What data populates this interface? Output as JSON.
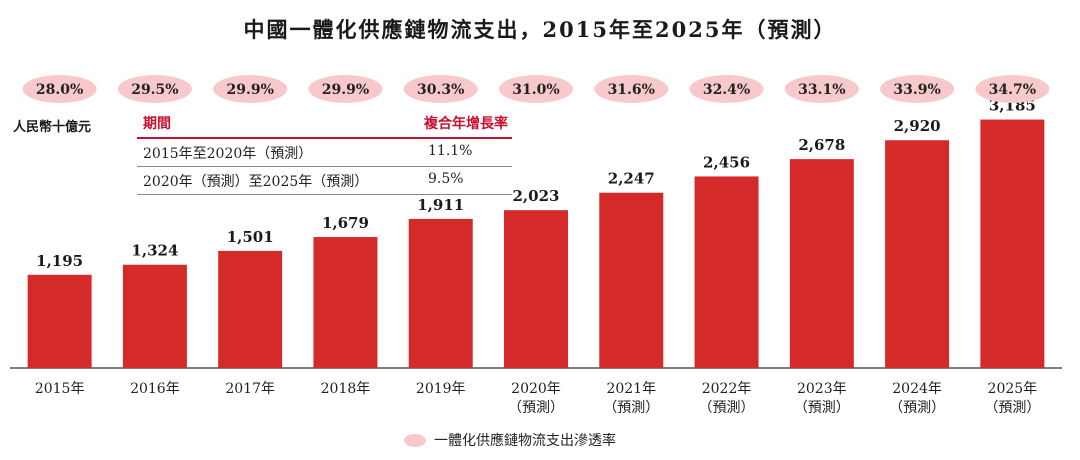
{
  "chart_data": {
    "type": "bar",
    "title": "中國一體化供應鏈物流支出，2015年至2025年（預測）",
    "unit": "人民幣十億元",
    "categories": [
      [
        "2015年"
      ],
      [
        "2016年"
      ],
      [
        "2017年"
      ],
      [
        "2018年"
      ],
      [
        "2019年"
      ],
      [
        "2020年",
        "（預測）"
      ],
      [
        "2021年",
        "（預測）"
      ],
      [
        "2022年",
        "（預測）"
      ],
      [
        "2023年",
        "（預測）"
      ],
      [
        "2024年",
        "（預測）"
      ],
      [
        "2025年",
        "（預測）"
      ]
    ],
    "series": [
      {
        "values": [
          1195,
          1324,
          1501,
          1679,
          1911,
          2023,
          2247,
          2456,
          2678,
          2920,
          3185
        ],
        "labels": [
          "1,195",
          "1,324",
          "1,501",
          "1,679",
          "1,911",
          "2,023",
          "2,247",
          "2,456",
          "2,678",
          "2,920",
          "3,185"
        ]
      },
      {
        "name": "一體化供應鏈物流支出滲透率",
        "values": [
          28.0,
          29.5,
          29.9,
          29.9,
          30.3,
          31.0,
          31.6,
          32.4,
          33.1,
          33.9,
          34.7
        ],
        "labels": [
          "28.0%",
          "29.5%",
          "29.9%",
          "29.9%",
          "30.3%",
          "31.0%",
          "31.6%",
          "32.4%",
          "33.1%",
          "33.9%",
          "34.7%"
        ]
      }
    ],
    "ylim": [
      0,
      3500
    ],
    "legend_position": "bottom-center",
    "grid": false,
    "colors": {
      "bar": "#d42a2a",
      "pill": "#f7c9cb"
    }
  },
  "cagr_table": {
    "header_period": "期間",
    "header_cagr": "複合年增長率",
    "rows": [
      {
        "period": "2015年至2020年（預測）",
        "cagr": "11.1%"
      },
      {
        "period": "2020年（預測）至2025年（預測）",
        "cagr": "9.5%"
      }
    ]
  }
}
